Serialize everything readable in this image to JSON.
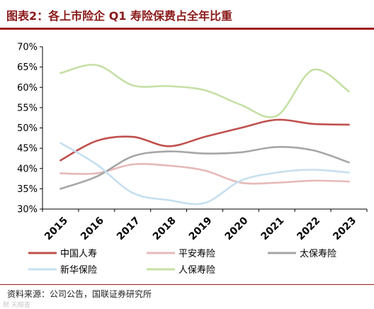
{
  "title": "图表2：各上市险企 Q1 寿险保费占全年比重",
  "source": "资料来源：公司公告，国联证券研究所",
  "watermark": "财 天眼查",
  "chart_data": {
    "type": "line",
    "categories": [
      "2015",
      "2016",
      "2017",
      "2018",
      "2019",
      "2020",
      "2021",
      "2022",
      "2023"
    ],
    "ylim": [
      30,
      70
    ],
    "yticks": [
      30,
      35,
      40,
      45,
      50,
      55,
      60,
      65,
      70
    ],
    "ytick_labels": [
      "30%",
      "35%",
      "40%",
      "45%",
      "50%",
      "55%",
      "60%",
      "65%",
      "70%"
    ],
    "grid": false,
    "legend_position": "bottom",
    "series": [
      {
        "name": "中国人寿",
        "color": "#c0504d",
        "values": [
          42.0,
          46.8,
          47.8,
          45.5,
          47.8,
          50.0,
          52.0,
          51.0,
          50.8
        ]
      },
      {
        "name": "平安寿险",
        "color": "#e6b9b8",
        "values": [
          38.8,
          38.8,
          41.0,
          40.7,
          39.5,
          36.5,
          36.5,
          37.0,
          36.8
        ]
      },
      {
        "name": "太保寿险",
        "color": "#a6a6a6",
        "values": [
          35.0,
          38.0,
          43.0,
          44.2,
          43.7,
          44.0,
          45.3,
          44.5,
          41.5
        ]
      },
      {
        "name": "新华保险",
        "color": "#c5dff0",
        "values": [
          46.3,
          41.0,
          34.0,
          32.2,
          31.5,
          37.0,
          39.0,
          39.7,
          39.0
        ]
      },
      {
        "name": "人保寿险",
        "color": "#c5e0a5",
        "values": [
          63.5,
          65.5,
          60.5,
          60.3,
          59.3,
          55.7,
          53.0,
          64.3,
          59.0
        ]
      }
    ]
  }
}
